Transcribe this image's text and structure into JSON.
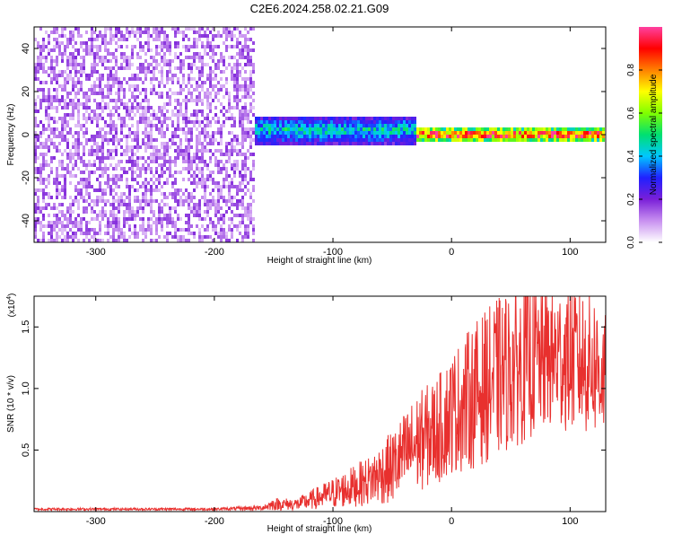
{
  "chart_data": [
    {
      "type": "heatmap",
      "title": "C2E6.2024.258.02.21.G09",
      "xlabel": "Height of straight line (km)",
      "ylabel": "Frequency (Hz)",
      "xlim": [
        -352,
        130
      ],
      "ylim": [
        -50,
        50
      ],
      "x_ticks": [
        -300,
        -200,
        -100,
        0,
        100
      ],
      "x_tick_labels": [
        "-300",
        "-200",
        "-100",
        "0",
        "100"
      ],
      "y_ticks": [
        -40,
        -20,
        0,
        20,
        40
      ],
      "y_tick_labels": [
        "-40",
        "-20",
        "0",
        "20",
        "40"
      ],
      "colorbar": {
        "label": "Normalized spectral amplitude",
        "range": [
          0,
          1
        ],
        "ticks": [
          0.0,
          0.2,
          0.4,
          0.6,
          0.8
        ],
        "tick_labels": [
          "0.0",
          "0.2",
          "0.4",
          "0.6",
          "0.8"
        ],
        "colormap": [
          "#ffffff",
          "#c890f0",
          "#7a1fd8",
          "#2020ff",
          "#00c8ff",
          "#00e070",
          "#80ff00",
          "#ffff00",
          "#ff8000",
          "#ff0000",
          "#ff40a0"
        ]
      },
      "regions": [
        {
          "x_range": [
            -352,
            -165
          ],
          "freq_range": [
            -50,
            50
          ],
          "amplitude": 0.1,
          "pattern": "scattered noise"
        },
        {
          "x_range": [
            -165,
            -30
          ],
          "freq_center": 2,
          "freq_halfwidth": 7,
          "amplitude": 0.45
        },
        {
          "x_range": [
            -30,
            130
          ],
          "freq_center": 0,
          "freq_halfwidth": 3,
          "amplitude": 0.95
        }
      ]
    },
    {
      "type": "line",
      "xlabel": "Height of straight line (km)",
      "ylabel": "SNR (10 * v/v)",
      "y_multiplier": "(x10",
      "y_multiplier_exp": "4",
      "xlim": [
        -352,
        130
      ],
      "ylim": [
        0,
        1.75
      ],
      "x_ticks": [
        -300,
        -200,
        -100,
        0,
        100
      ],
      "x_tick_labels": [
        "-300",
        "-200",
        "-100",
        "0",
        "100"
      ],
      "y_ticks": [
        0.5,
        1.0,
        1.5
      ],
      "y_tick_labels": [
        "0.5",
        "1.0",
        "1.5"
      ],
      "series": [
        {
          "color": "#e8302e",
          "x": [
            -352,
            -300,
            -250,
            -200,
            -160,
            -150,
            -130,
            -110,
            -90,
            -70,
            -50,
            -30,
            -10,
            0,
            20,
            40,
            60,
            80,
            100,
            120,
            130
          ],
          "y": [
            0.02,
            0.02,
            0.02,
            0.02,
            0.03,
            0.06,
            0.06,
            0.12,
            0.18,
            0.25,
            0.36,
            0.55,
            0.68,
            0.8,
            0.95,
            1.1,
            1.2,
            1.25,
            1.25,
            1.2,
            1.1
          ],
          "noise": [
            0.01,
            0.01,
            0.01,
            0.01,
            0.02,
            0.05,
            0.05,
            0.1,
            0.15,
            0.2,
            0.3,
            0.4,
            0.45,
            0.5,
            0.6,
            0.65,
            0.65,
            0.6,
            0.6,
            0.6,
            0.5
          ]
        }
      ]
    }
  ]
}
